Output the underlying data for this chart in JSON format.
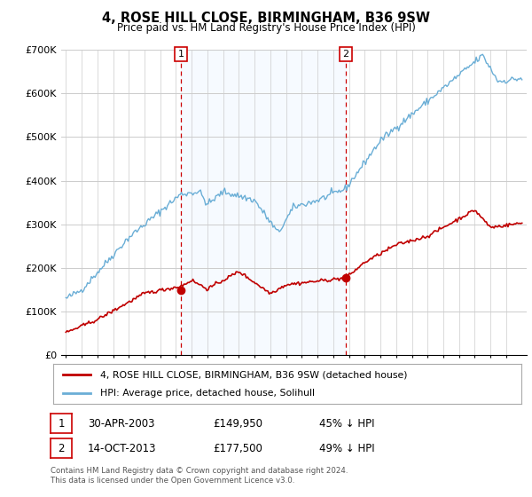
{
  "title": "4, ROSE HILL CLOSE, BIRMINGHAM, B36 9SW",
  "subtitle": "Price paid vs. HM Land Registry's House Price Index (HPI)",
  "ylim": [
    0,
    700000
  ],
  "yticks": [
    0,
    100000,
    200000,
    300000,
    400000,
    500000,
    600000,
    700000
  ],
  "ytick_labels": [
    "£0",
    "£100K",
    "£200K",
    "£300K",
    "£400K",
    "£500K",
    "£600K",
    "£700K"
  ],
  "hpi_color": "#6aaed6",
  "price_color": "#c00000",
  "vline_color": "#cc0000",
  "shade_color": "#ddeeff",
  "sale1_x": 2003.33,
  "sale1_y": 149950,
  "sale2_x": 2013.79,
  "sale2_y": 177500,
  "legend_line1": "4, ROSE HILL CLOSE, BIRMINGHAM, B36 9SW (detached house)",
  "legend_line2": "HPI: Average price, detached house, Solihull",
  "table_row1": [
    "1",
    "30-APR-2003",
    "£149,950",
    "45% ↓ HPI"
  ],
  "table_row2": [
    "2",
    "14-OCT-2013",
    "£177,500",
    "49% ↓ HPI"
  ],
  "footnote": "Contains HM Land Registry data © Crown copyright and database right 2024.\nThis data is licensed under the Open Government Licence v3.0.",
  "bg_color": "#ffffff",
  "grid_color": "#cccccc",
  "xlim_left": 1995.7,
  "xlim_right": 2025.3
}
